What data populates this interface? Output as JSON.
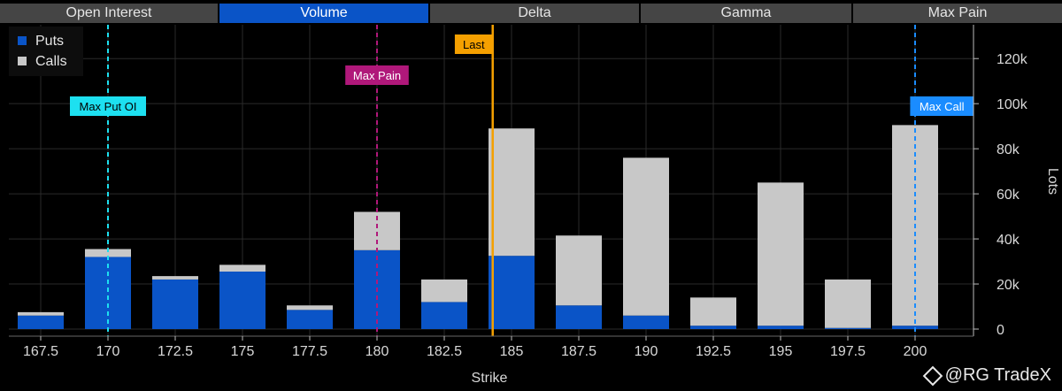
{
  "tabs": [
    {
      "label": "Open Interest",
      "active": false
    },
    {
      "label": "Volume",
      "active": true
    },
    {
      "label": "Delta",
      "active": false
    },
    {
      "label": "Gamma",
      "active": false
    },
    {
      "label": "Max Pain",
      "active": false
    }
  ],
  "colors": {
    "puts": "#0a54c7",
    "calls": "#c8c8c8",
    "last": "#f5a000",
    "max_pain": "#b0187a",
    "max_put_oi": "#1de0f0",
    "max_call": "#1a8cff"
  },
  "chart_data": {
    "type": "bar",
    "stacked": true,
    "categories": [
      "167.5",
      "170",
      "172.5",
      "175",
      "177.5",
      "180",
      "182.5",
      "185",
      "187.5",
      "190",
      "192.5",
      "195",
      "197.5",
      "200"
    ],
    "series": [
      {
        "name": "Puts",
        "values": [
          6000,
          32000,
          22000,
          25500,
          8500,
          35000,
          12000,
          32500,
          10500,
          6000,
          1500,
          1500,
          500,
          1500
        ]
      },
      {
        "name": "Calls",
        "values": [
          1500,
          3500,
          1500,
          3000,
          2000,
          17000,
          10000,
          56500,
          31000,
          70000,
          12500,
          63500,
          21500,
          89000
        ]
      }
    ],
    "xlabel": "Strike",
    "ylabel": "Lots",
    "ylim": [
      0,
      135000
    ],
    "yticks": [
      0,
      20000,
      40000,
      60000,
      80000,
      100000,
      120000
    ],
    "ytick_labels": [
      "0",
      "20k",
      "40k",
      "60k",
      "80k",
      "100k",
      "120k"
    ],
    "legend_position": "top-left",
    "grid": true,
    "markers": [
      {
        "label": "Max Put OI",
        "strike": 170,
        "style": "dashed"
      },
      {
        "label": "Max Pain",
        "strike": 180,
        "style": "dashed"
      },
      {
        "label": "Last",
        "strike": 184.3,
        "style": "solid"
      },
      {
        "label": "Max Call",
        "strike": 200,
        "style": "dashed"
      }
    ]
  },
  "watermark": {
    "text": "@RG TradeX"
  }
}
